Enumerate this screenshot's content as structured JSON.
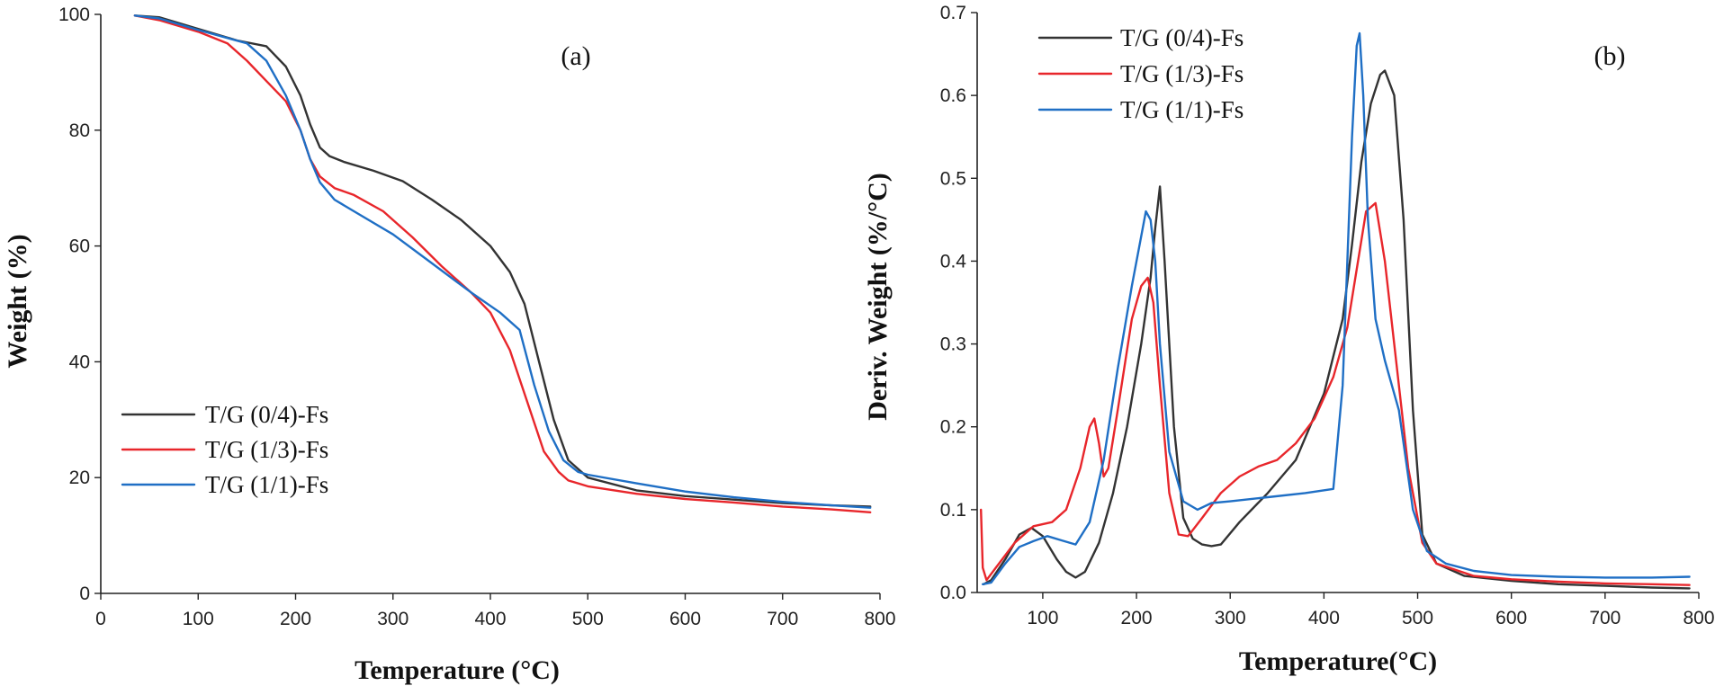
{
  "chart_data": [
    {
      "type": "line",
      "panel_label": "(a)",
      "xlabel": "Temperature (°C)",
      "ylabel": "Weight (%)",
      "xlim": [
        0,
        800
      ],
      "ylim": [
        0,
        100
      ],
      "xticks": [
        0,
        100,
        200,
        300,
        400,
        500,
        600,
        700,
        800
      ],
      "yticks": [
        0,
        20,
        40,
        60,
        80,
        100
      ],
      "legend_position": "lower-left",
      "series": [
        {
          "name": "T/G (0/4)-Fs",
          "color": "#333333",
          "x": [
            35,
            60,
            100,
            140,
            170,
            190,
            205,
            215,
            225,
            235,
            250,
            280,
            310,
            340,
            370,
            400,
            420,
            435,
            450,
            465,
            480,
            500,
            550,
            600,
            650,
            700,
            750,
            790
          ],
          "y": [
            99.8,
            99.5,
            97.5,
            95.5,
            94.5,
            91,
            86,
            81,
            77,
            75.5,
            74.5,
            73,
            71.2,
            68,
            64.5,
            60,
            55.5,
            50,
            40,
            30,
            23,
            20,
            17.8,
            16.8,
            16.2,
            15.6,
            15.2,
            15
          ]
        },
        {
          "name": "T/G (1/3)-Fs",
          "color": "#e8262b",
          "x": [
            35,
            60,
            100,
            130,
            150,
            170,
            190,
            205,
            215,
            225,
            240,
            260,
            290,
            320,
            350,
            380,
            400,
            420,
            440,
            455,
            470,
            480,
            500,
            550,
            600,
            650,
            700,
            750,
            790
          ],
          "y": [
            99.8,
            99,
            97,
            95,
            92,
            88.5,
            85,
            80,
            75,
            72,
            70,
            68.8,
            66,
            61.5,
            56.5,
            52,
            48.5,
            42,
            32,
            24.5,
            21,
            19.5,
            18.5,
            17.2,
            16.3,
            15.7,
            15,
            14.5,
            14
          ]
        },
        {
          "name": "T/G (1/1)-Fs",
          "color": "#1f6fc5",
          "x": [
            35,
            60,
            100,
            150,
            170,
            190,
            205,
            215,
            225,
            240,
            260,
            300,
            340,
            380,
            410,
            430,
            445,
            460,
            475,
            490,
            500,
            550,
            600,
            650,
            700,
            750,
            790
          ],
          "y": [
            99.8,
            99.3,
            97.3,
            95,
            92,
            86,
            80,
            75,
            71,
            68,
            66,
            62,
            57,
            52,
            48.5,
            45.5,
            36,
            28,
            23,
            21,
            20.5,
            19,
            17.6,
            16.6,
            15.8,
            15.2,
            14.8
          ]
        }
      ]
    },
    {
      "type": "line",
      "panel_label": "(b)",
      "xlabel": "Temperature(°C)",
      "ylabel": "Deriv. Weight (%/°C)",
      "xlim": [
        30,
        800
      ],
      "ylim": [
        0,
        0.7
      ],
      "xticks": [
        100,
        200,
        300,
        400,
        500,
        600,
        700,
        800
      ],
      "yticks": [
        0.0,
        0.1,
        0.2,
        0.3,
        0.4,
        0.5,
        0.6,
        0.7
      ],
      "legend_position": "top-left",
      "series": [
        {
          "name": "T/G (0/4)-Fs",
          "color": "#333333",
          "x": [
            37,
            45,
            60,
            75,
            88,
            100,
            115,
            125,
            135,
            145,
            160,
            175,
            190,
            205,
            215,
            220,
            225,
            230,
            240,
            250,
            260,
            270,
            280,
            290,
            310,
            340,
            370,
            400,
            420,
            430,
            440,
            450,
            460,
            465,
            475,
            485,
            495,
            505,
            520,
            550,
            600,
            650,
            700,
            750,
            790
          ],
          "y": [
            0.01,
            0.015,
            0.04,
            0.07,
            0.078,
            0.068,
            0.04,
            0.025,
            0.018,
            0.025,
            0.06,
            0.12,
            0.2,
            0.3,
            0.38,
            0.44,
            0.49,
            0.4,
            0.2,
            0.09,
            0.065,
            0.058,
            0.056,
            0.058,
            0.085,
            0.12,
            0.16,
            0.24,
            0.33,
            0.42,
            0.52,
            0.59,
            0.625,
            0.63,
            0.6,
            0.45,
            0.22,
            0.07,
            0.035,
            0.02,
            0.014,
            0.01,
            0.008,
            0.006,
            0.005
          ]
        },
        {
          "name": "T/G (1/3)-Fs",
          "color": "#e8262b",
          "x": [
            34,
            36,
            40,
            50,
            70,
            90,
            110,
            125,
            140,
            150,
            155,
            160,
            165,
            170,
            180,
            195,
            205,
            212,
            218,
            225,
            235,
            245,
            255,
            270,
            290,
            310,
            330,
            350,
            370,
            390,
            410,
            425,
            435,
            445,
            455,
            465,
            475,
            490,
            505,
            520,
            560,
            600,
            650,
            700,
            750,
            790
          ],
          "y": [
            0.1,
            0.03,
            0.015,
            0.03,
            0.06,
            0.08,
            0.085,
            0.1,
            0.15,
            0.2,
            0.21,
            0.18,
            0.14,
            0.15,
            0.22,
            0.33,
            0.37,
            0.38,
            0.35,
            0.25,
            0.12,
            0.07,
            0.068,
            0.09,
            0.12,
            0.14,
            0.152,
            0.16,
            0.18,
            0.21,
            0.26,
            0.32,
            0.39,
            0.46,
            0.47,
            0.4,
            0.3,
            0.15,
            0.06,
            0.035,
            0.02,
            0.016,
            0.013,
            0.011,
            0.01,
            0.009
          ]
        },
        {
          "name": "T/G (1/1)-Fs",
          "color": "#1f6fc5",
          "x": [
            36,
            45,
            60,
            75,
            90,
            105,
            120,
            135,
            150,
            165,
            180,
            195,
            205,
            210,
            215,
            220,
            225,
            235,
            250,
            265,
            280,
            300,
            340,
            380,
            410,
            420,
            425,
            430,
            435,
            438,
            442,
            447,
            455,
            465,
            480,
            495,
            510,
            530,
            560,
            600,
            650,
            700,
            750,
            790
          ],
          "y": [
            0.01,
            0.012,
            0.035,
            0.055,
            0.062,
            0.068,
            0.063,
            0.058,
            0.085,
            0.16,
            0.27,
            0.37,
            0.43,
            0.46,
            0.45,
            0.4,
            0.3,
            0.17,
            0.11,
            0.1,
            0.108,
            0.11,
            0.115,
            0.12,
            0.125,
            0.25,
            0.4,
            0.55,
            0.66,
            0.675,
            0.6,
            0.45,
            0.33,
            0.28,
            0.22,
            0.1,
            0.05,
            0.035,
            0.026,
            0.021,
            0.019,
            0.018,
            0.018,
            0.019
          ]
        }
      ]
    }
  ]
}
